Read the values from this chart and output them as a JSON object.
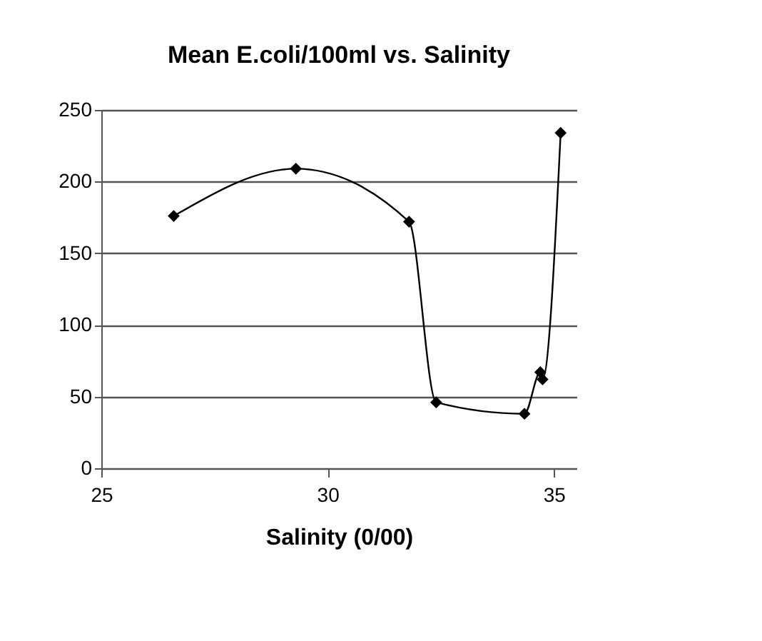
{
  "chart_data": {
    "type": "line",
    "title": "Mean E.coli/100ml vs. Salinity",
    "xlabel": "Salinity (0/00)",
    "x": [
      26.6,
      29.3,
      31.8,
      32.4,
      34.35,
      34.7,
      34.75,
      35.15
    ],
    "series": [
      {
        "color": "#000000",
        "values": [
          176,
          209,
          172,
          46,
          38,
          67,
          62,
          234
        ]
      }
    ],
    "xlim": [
      25,
      35.5
    ],
    "xticks": [
      25,
      30,
      35
    ],
    "ylim": [
      0,
      250
    ],
    "yticks": [
      0,
      50,
      100,
      150,
      200,
      250
    ],
    "grid": "y",
    "marker": "diamond",
    "line_style": "solid",
    "legend": false
  }
}
